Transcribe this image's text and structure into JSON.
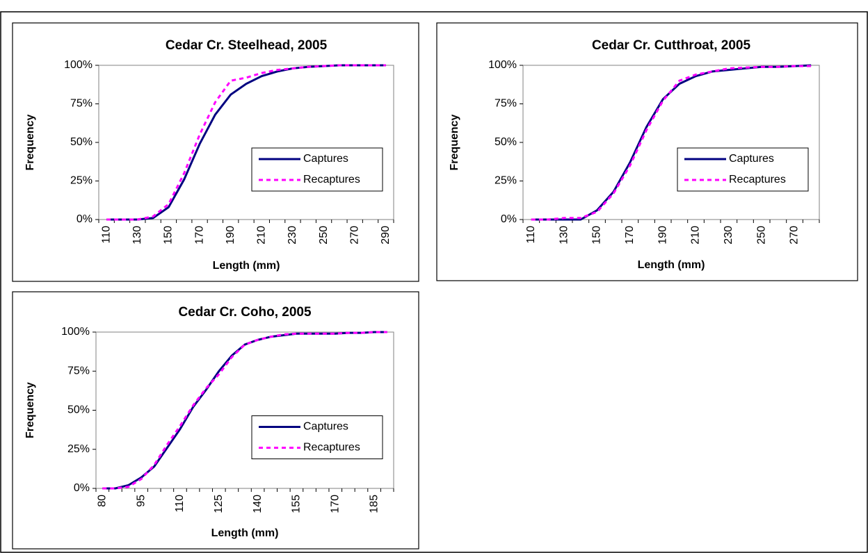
{
  "chart_data": [
    {
      "type": "line",
      "title": "Cedar Cr. Steelhead, 2005",
      "x_label": "Length (mm)",
      "y_label": "Frequency",
      "categories": [
        110,
        null,
        130,
        null,
        150,
        null,
        170,
        null,
        190,
        null,
        210,
        null,
        230,
        null,
        250,
        null,
        270,
        null,
        290
      ],
      "series": [
        {
          "name": "Captures",
          "color": "#000080",
          "style": "solid",
          "values": [
            0,
            0,
            0,
            1,
            8,
            26,
            49,
            68,
            81,
            88,
            93,
            96,
            98,
            99,
            99.5,
            100,
            100,
            100,
            100
          ]
        },
        {
          "name": "Recaptures",
          "color": "#ff00ff",
          "style": "dashed",
          "values": [
            0,
            0,
            0,
            2,
            10,
            30,
            55,
            76,
            90,
            92,
            95,
            97,
            98,
            99,
            99.5,
            100,
            100,
            100,
            100
          ]
        }
      ],
      "ylim": [
        0,
        100
      ],
      "yticks": [
        {
          "value": 0,
          "label": "0%"
        },
        {
          "value": 25,
          "label": "25%"
        },
        {
          "value": 50,
          "label": "50%"
        },
        {
          "value": 75,
          "label": "75%"
        },
        {
          "value": 100,
          "label": "100%"
        }
      ],
      "legend": "right",
      "grid": false
    },
    {
      "type": "line",
      "title": "Cedar Cr. Cutthroat, 2005",
      "x_label": "Length (mm)",
      "y_label": "Frequency",
      "categories": [
        110,
        null,
        130,
        null,
        150,
        null,
        170,
        null,
        190,
        null,
        210,
        null,
        230,
        null,
        250,
        null,
        270,
        null
      ],
      "series": [
        {
          "name": "Captures",
          "color": "#000080",
          "style": "solid",
          "values": [
            0,
            0,
            0,
            0,
            6,
            18,
            37,
            60,
            78,
            88,
            93,
            96,
            97,
            98,
            99,
            99,
            99.5,
            100
          ]
        },
        {
          "name": "Recaptures",
          "color": "#ff00ff",
          "style": "dashed",
          "values": [
            0,
            0,
            1,
            1,
            5,
            17,
            35,
            58,
            77,
            90,
            94,
            96,
            98,
            98.5,
            99,
            99,
            99.5,
            99.5
          ]
        }
      ],
      "ylim": [
        0,
        100
      ],
      "yticks": [
        {
          "value": 0,
          "label": "0%"
        },
        {
          "value": 25,
          "label": "25%"
        },
        {
          "value": 50,
          "label": "50%"
        },
        {
          "value": 75,
          "label": "75%"
        },
        {
          "value": 100,
          "label": "100%"
        }
      ],
      "legend": "right",
      "grid": false
    },
    {
      "type": "line",
      "title": "Cedar Cr. Coho, 2005",
      "x_label": "Length (mm)",
      "y_label": "Frequency",
      "categories": [
        80,
        null,
        null,
        95,
        null,
        null,
        110,
        null,
        null,
        125,
        null,
        null,
        140,
        null,
        null,
        155,
        null,
        null,
        170,
        null,
        null,
        185,
        null
      ],
      "series": [
        {
          "name": "Captures",
          "color": "#000080",
          "style": "solid",
          "values": [
            0,
            0,
            2,
            7,
            14,
            26,
            38,
            52,
            63,
            75,
            85,
            92,
            95,
            97,
            98,
            99,
            99,
            99,
            99,
            99.5,
            99.5,
            100,
            100
          ]
        },
        {
          "name": "Recaptures",
          "color": "#ff00ff",
          "style": "dashed",
          "values": [
            0,
            0,
            1,
            6,
            15,
            28,
            40,
            53,
            64,
            73,
            84,
            92,
            95,
            97,
            98.5,
            99,
            99,
            99,
            99,
            99.5,
            99.5,
            100,
            100
          ]
        }
      ],
      "ylim": [
        0,
        100
      ],
      "yticks": [
        {
          "value": 0,
          "label": "0%"
        },
        {
          "value": 25,
          "label": "25%"
        },
        {
          "value": 50,
          "label": "50%"
        },
        {
          "value": 75,
          "label": "75%"
        },
        {
          "value": 100,
          "label": "100%"
        }
      ],
      "legend": "right",
      "grid": false
    }
  ]
}
